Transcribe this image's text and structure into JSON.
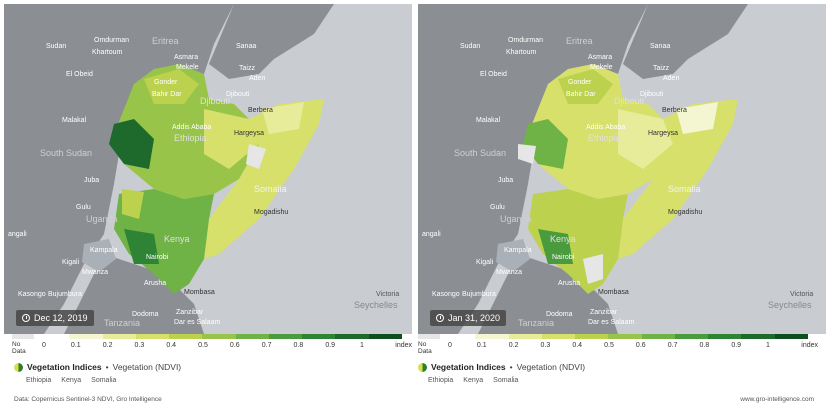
{
  "panels": [
    {
      "date": "Dec 12, 2019",
      "labels": {
        "sudan": "Sudan",
        "omdurman": "Omdurman",
        "khartoum": "Khartoum",
        "el_obeid": "El Obeid",
        "malakal": "Malakal",
        "south_sudan": "South Sudan",
        "juba": "Juba",
        "gulu": "Gulu",
        "uganda": "Uganda",
        "kampala": "Kampala",
        "kigali": "Kigali",
        "mwanza": "Mwanza",
        "kasongo": "Kasongo",
        "bujumbura": "Bujumbura",
        "tanzania": "Tanzania",
        "dodoma": "Dodoma",
        "zanzibar": "Zanzibar",
        "dar": "Dar es Salaam",
        "eritrea": "Eritrea",
        "asmara": "Asmara",
        "mekele": "Mekele",
        "gonder": "Gonder",
        "bahir_dar": "Bahir Dar",
        "addis": "Addis Ababa",
        "ethiopia": "Ethiopia",
        "djibouti_c": "Djibouti",
        "djibouti": "Djibouti",
        "sanaa": "Sanaa",
        "taizz": "Taizz",
        "aden": "Aden",
        "berbera": "Berbera",
        "hargeysa": "Hargeysa",
        "somalia": "Somalia",
        "mogadishu": "Mogadishu",
        "kenya": "Kenya",
        "nairobi": "Nairobi",
        "arusha": "Arusha",
        "mombasa": "Mombasa",
        "victoria": "Victoria",
        "seychelles": "Seychelles",
        "angali": "angali"
      }
    },
    {
      "date": "Jan 31, 2020",
      "labels": {
        "sudan": "Sudan",
        "omdurman": "Omdurman",
        "khartoum": "Khartoum",
        "el_obeid": "El Obeid",
        "malakal": "Malakal",
        "south_sudan": "South Sudan",
        "juba": "Juba",
        "gulu": "Gulu",
        "uganda": "Uganda",
        "kampala": "Kampala",
        "kigali": "Kigali",
        "mwanza": "Mwanza",
        "kasongo": "Kasongo",
        "bujumbura": "Bujumbura",
        "tanzania": "Tanzania",
        "dodoma": "Dodoma",
        "zanzibar": "Zanzibar",
        "dar": "Dar es Salaam",
        "eritrea": "Eritrea",
        "asmara": "Asmara",
        "mekele": "Mekele",
        "gonder": "Gonder",
        "bahir_dar": "Bahir Dar",
        "addis": "Addis Ababa",
        "ethiopia": "Ethiopia",
        "djibouti_c": "Djibouti",
        "djibouti": "Djibouti",
        "sanaa": "Sanaa",
        "taizz": "Taizz",
        "aden": "Aden",
        "berbera": "Berbera",
        "hargeysa": "Hargeysa",
        "somalia": "Somalia",
        "mogadishu": "Mogadishu",
        "kenya": "Kenya",
        "nairobi": "Nairobi",
        "arusha": "Arusha",
        "mombasa": "Mombasa",
        "victoria": "Victoria",
        "seychelles": "Seychelles",
        "angali": "angali"
      }
    }
  ],
  "legend": {
    "nodata_line1": "No",
    "nodata_line2": "Data",
    "ticks": [
      "0",
      "0.1",
      "0.2",
      "0.3",
      "0.4",
      "0.5",
      "0.6",
      "0.7",
      "0.8",
      "0.9",
      "1"
    ],
    "unit": "index",
    "colors": [
      "#ffffff",
      "#f3f6d0",
      "#e6ec9a",
      "#d6e06a",
      "#bcd24e",
      "#98c44a",
      "#6fb246",
      "#4a9b3e",
      "#2f8335",
      "#1d6a2c",
      "#0f4f1f"
    ]
  },
  "title": {
    "main": "Vegetation Indices",
    "separator": "•",
    "sub": "Vegetation (NDVI)"
  },
  "countries": [
    "Ethiopia",
    "Kenya",
    "Somalia"
  ],
  "footer": {
    "source": "Data: Copernicus Sentinel-3 NDVI, Gro Intelligence",
    "site": "www.gro-intelligence.com"
  },
  "colors": {
    "water": "#c9ccd1",
    "land": "#8b8e92",
    "land_dark": "#75787c",
    "no_data": "#e6e6e6"
  }
}
